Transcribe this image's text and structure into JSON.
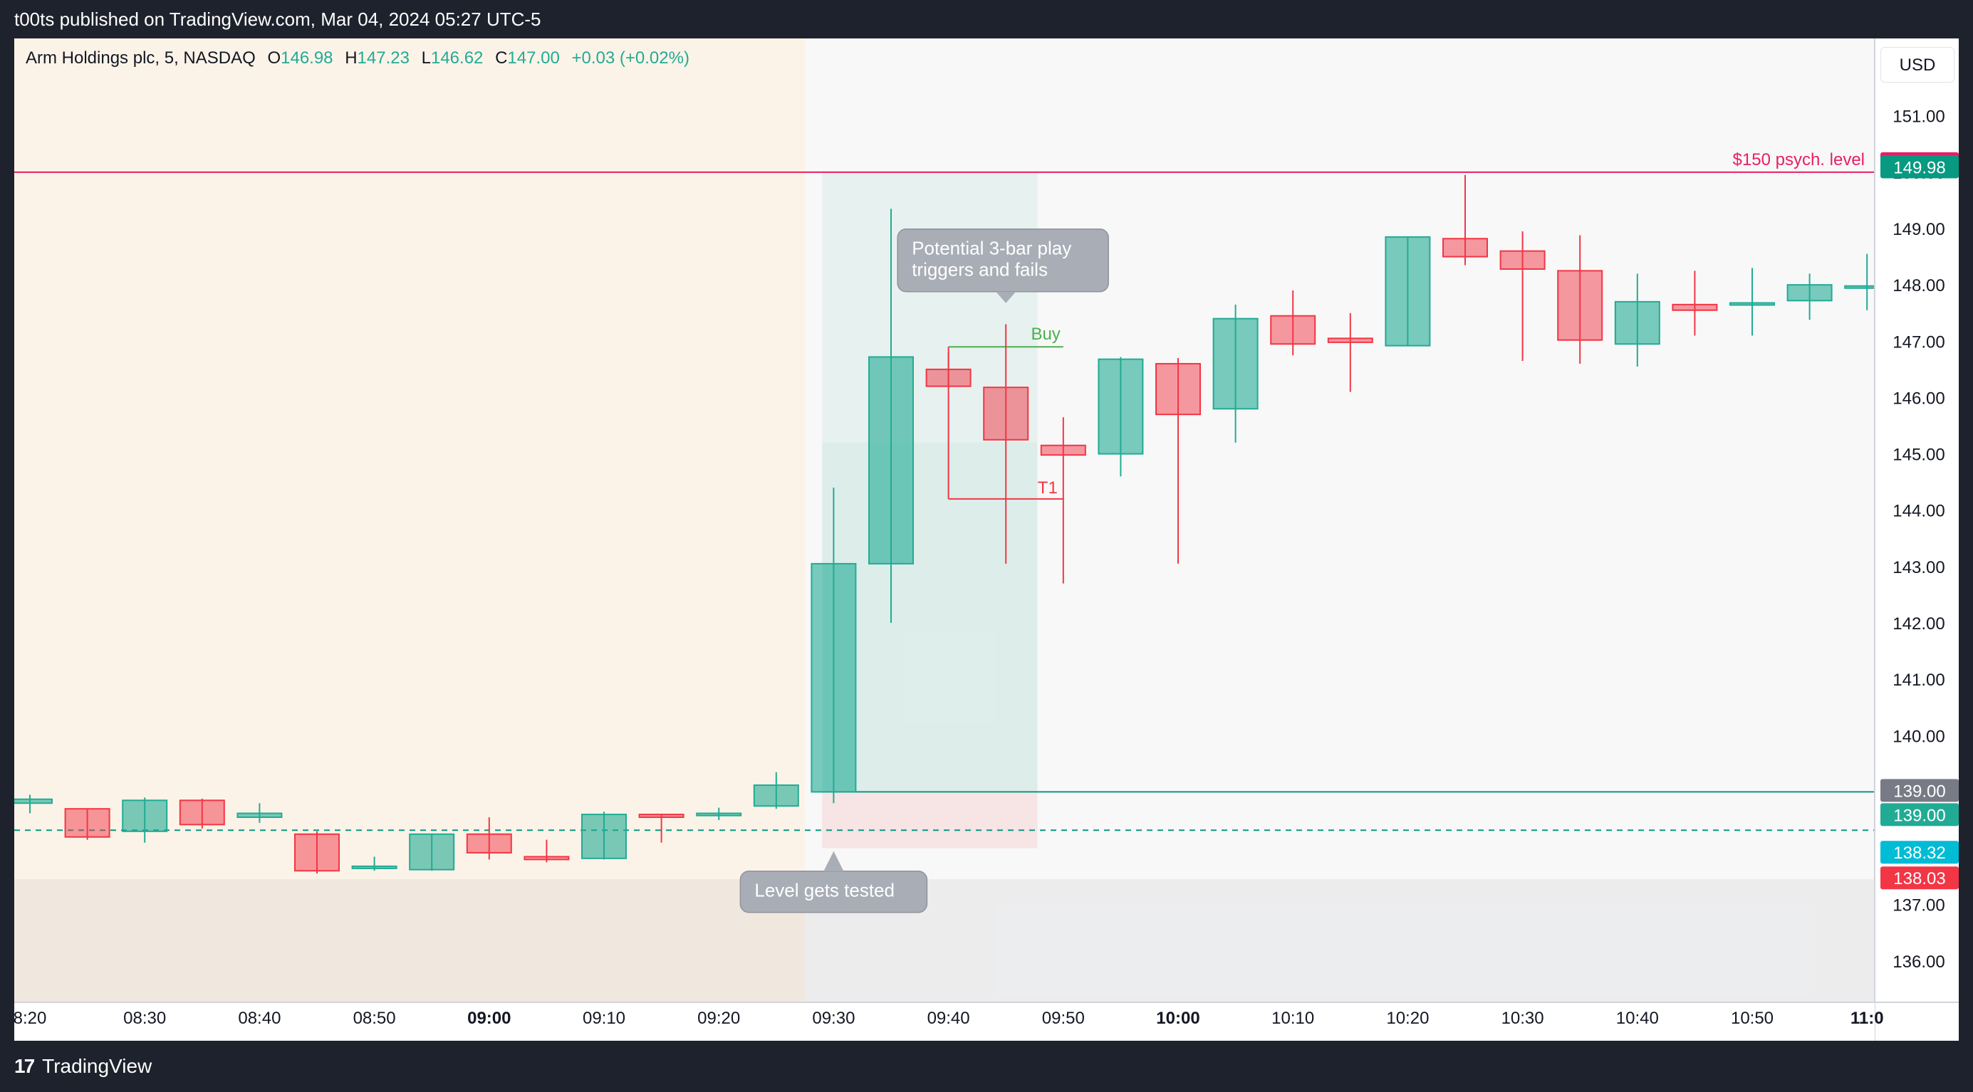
{
  "header": {
    "publish_text": "t00ts published on TradingView.com, Mar 04, 2024 05:27 UTC-5"
  },
  "legend": {
    "symbol": "Arm Holdings plc, 5, NASDAQ",
    "o_label": "O",
    "o_value": "146.98",
    "h_label": "H",
    "h_value": "147.23",
    "l_label": "L",
    "l_value": "146.62",
    "c_label": "C",
    "c_value": "147.00",
    "change": "+0.03 (+0.02%)"
  },
  "currency_button": "USD",
  "footer": {
    "brand": "TradingView",
    "logo_glyph": "17"
  },
  "chart_data": {
    "type": "candlestick",
    "interval": "5",
    "currency": "USD",
    "ylim": [
      135.0,
      152.5
    ],
    "y_ticks": [
      136,
      137,
      138,
      139,
      140,
      141,
      142,
      143,
      144,
      145,
      146,
      147,
      148,
      149,
      150,
      151
    ],
    "y_tick_labels": [
      "136.00",
      "137.00",
      "138.00",
      "139.00",
      "140.00",
      "141.00",
      "142.00",
      "143.00",
      "144.00",
      "145.00",
      "146.00",
      "147.00",
      "148.00",
      "149.00",
      "150.00",
      "151.00"
    ],
    "x_tick_labels": [
      {
        "label": "8:20",
        "bold": false
      },
      {
        "label": "08:30",
        "bold": false
      },
      {
        "label": "08:40",
        "bold": false
      },
      {
        "label": "08:50",
        "bold": false
      },
      {
        "label": "09:00",
        "bold": true
      },
      {
        "label": "09:10",
        "bold": false
      },
      {
        "label": "09:20",
        "bold": false
      },
      {
        "label": "09:30",
        "bold": false
      },
      {
        "label": "09:40",
        "bold": false
      },
      {
        "label": "09:50",
        "bold": false
      },
      {
        "label": "10:00",
        "bold": true
      },
      {
        "label": "10:10",
        "bold": false
      },
      {
        "label": "10:20",
        "bold": false
      },
      {
        "label": "10:30",
        "bold": false
      },
      {
        "label": "10:40",
        "bold": false
      },
      {
        "label": "10:50",
        "bold": false
      },
      {
        "label": "11:0",
        "bold": true
      }
    ],
    "candles": [
      {
        "t": "08:20",
        "o": 138.8,
        "h": 138.95,
        "l": 138.62,
        "c": 138.87
      },
      {
        "t": "08:25",
        "o": 138.7,
        "h": 138.7,
        "l": 138.15,
        "c": 138.2
      },
      {
        "t": "08:30",
        "o": 138.3,
        "h": 138.9,
        "l": 138.1,
        "c": 138.85
      },
      {
        "t": "08:35",
        "o": 138.85,
        "h": 138.88,
        "l": 138.35,
        "c": 138.42
      },
      {
        "t": "08:40",
        "o": 138.55,
        "h": 138.8,
        "l": 138.45,
        "c": 138.62
      },
      {
        "t": "08:45",
        "o": 138.25,
        "h": 138.3,
        "l": 137.55,
        "c": 137.6
      },
      {
        "t": "08:50",
        "o": 137.65,
        "h": 137.85,
        "l": 137.6,
        "c": 137.68
      },
      {
        "t": "08:55",
        "o": 137.62,
        "h": 138.25,
        "l": 137.6,
        "c": 138.25
      },
      {
        "t": "09:00",
        "o": 138.25,
        "h": 138.55,
        "l": 137.8,
        "c": 137.92
      },
      {
        "t": "09:05",
        "o": 137.85,
        "h": 138.15,
        "l": 137.75,
        "c": 137.8
      },
      {
        "t": "09:10",
        "o": 137.82,
        "h": 138.65,
        "l": 137.8,
        "c": 138.6
      },
      {
        "t": "09:15",
        "o": 138.6,
        "h": 138.6,
        "l": 138.1,
        "c": 138.55
      },
      {
        "t": "09:20",
        "o": 138.58,
        "h": 138.72,
        "l": 138.5,
        "c": 138.62
      },
      {
        "t": "09:25",
        "o": 138.75,
        "h": 139.35,
        "l": 138.7,
        "c": 139.12
      },
      {
        "t": "09:30",
        "o": 139.0,
        "h": 144.4,
        "l": 138.8,
        "c": 143.05
      },
      {
        "t": "09:35",
        "o": 143.05,
        "h": 149.35,
        "l": 142.0,
        "c": 146.72
      },
      {
        "t": "09:40",
        "o": 146.5,
        "h": 146.8,
        "l": 146.2,
        "c": 146.2
      },
      {
        "t": "09:45",
        "o": 146.18,
        "h": 147.3,
        "l": 143.05,
        "c": 145.25
      },
      {
        "t": "09:50",
        "o": 145.15,
        "h": 145.65,
        "l": 142.7,
        "c": 144.98
      },
      {
        "t": "09:55",
        "o": 145.0,
        "h": 146.72,
        "l": 144.6,
        "c": 146.68
      },
      {
        "t": "10:00",
        "o": 146.6,
        "h": 146.7,
        "l": 143.05,
        "c": 145.7
      },
      {
        "t": "10:05",
        "o": 145.8,
        "h": 147.65,
        "l": 145.2,
        "c": 147.4
      },
      {
        "t": "10:10",
        "o": 147.45,
        "h": 147.9,
        "l": 146.75,
        "c": 146.95
      },
      {
        "t": "10:15",
        "o": 147.05,
        "h": 147.5,
        "l": 146.1,
        "c": 146.98
      },
      {
        "t": "10:20",
        "o": 146.92,
        "h": 148.85,
        "l": 146.92,
        "c": 148.85
      },
      {
        "t": "10:25",
        "o": 148.82,
        "h": 149.95,
        "l": 148.35,
        "c": 148.5
      },
      {
        "t": "10:30",
        "o": 148.6,
        "h": 148.95,
        "l": 146.65,
        "c": 148.28
      },
      {
        "t": "10:35",
        "o": 148.25,
        "h": 148.88,
        "l": 146.6,
        "c": 147.02
      },
      {
        "t": "10:40",
        "o": 146.95,
        "h": 148.2,
        "l": 146.55,
        "c": 147.7
      },
      {
        "t": "10:45",
        "o": 147.65,
        "h": 148.25,
        "l": 147.1,
        "c": 147.55
      },
      {
        "t": "10:50",
        "o": 147.65,
        "h": 148.3,
        "l": 147.1,
        "c": 147.68
      },
      {
        "t": "10:55",
        "o": 147.72,
        "h": 148.2,
        "l": 147.38,
        "c": 148.0
      },
      {
        "t": "11:00",
        "o": 147.95,
        "h": 148.55,
        "l": 147.55,
        "c": 147.98
      }
    ],
    "horizontal_levels": [
      {
        "name": "psych-level",
        "price": 150.0,
        "color": "#e91e63",
        "label": "$150 psych. level"
      },
      {
        "name": "resistance-line",
        "price": 139.0,
        "color": "#089981"
      },
      {
        "name": "current-price-line",
        "price": 138.32,
        "color": "#089981",
        "dashed": true
      }
    ],
    "price_tags": [
      {
        "text": "150.00",
        "price": 150.0,
        "color": "#e91e63"
      },
      {
        "text": "149.98",
        "price": 149.98,
        "color": "#089981"
      },
      {
        "text": "139.00",
        "price": 139.0,
        "color": "#787b86"
      },
      {
        "text": "139.00",
        "price": 139.0,
        "color": "#22ab94"
      },
      {
        "text": "138.32",
        "price": 138.32,
        "color": "#00bcd4"
      },
      {
        "text": "138.03",
        "price": 138.03,
        "color": "#f23645"
      }
    ],
    "session_shading": [
      {
        "name": "premarket",
        "from": "08:20",
        "to": "09:25",
        "color": "#fcf3e8"
      },
      {
        "name": "low-zone",
        "price_to": 137.45,
        "color": "rgba(120,123,134,0.09)"
      }
    ],
    "position_box": {
      "from": "09:30",
      "to": "09:45",
      "entry": 139.0,
      "target": 150.0,
      "mid": 145.2,
      "stop": 138.0
    },
    "trade_marks": {
      "buy": {
        "label": "Buy",
        "price": 146.9,
        "from": "09:40",
        "to": "09:50"
      },
      "t1": {
        "label": "T1",
        "price": 144.2,
        "from": "09:40",
        "to": "09:50"
      }
    },
    "annotations": [
      {
        "text_lines": [
          "Potential 3-bar play",
          "triggers and fails"
        ],
        "anchor_time": "09:45",
        "anchor_price": 147.5,
        "pointer": "down"
      },
      {
        "text_lines": [
          "Level gets tested"
        ],
        "anchor_time": "09:30",
        "anchor_price": 138.2,
        "pointer": "up"
      }
    ]
  }
}
